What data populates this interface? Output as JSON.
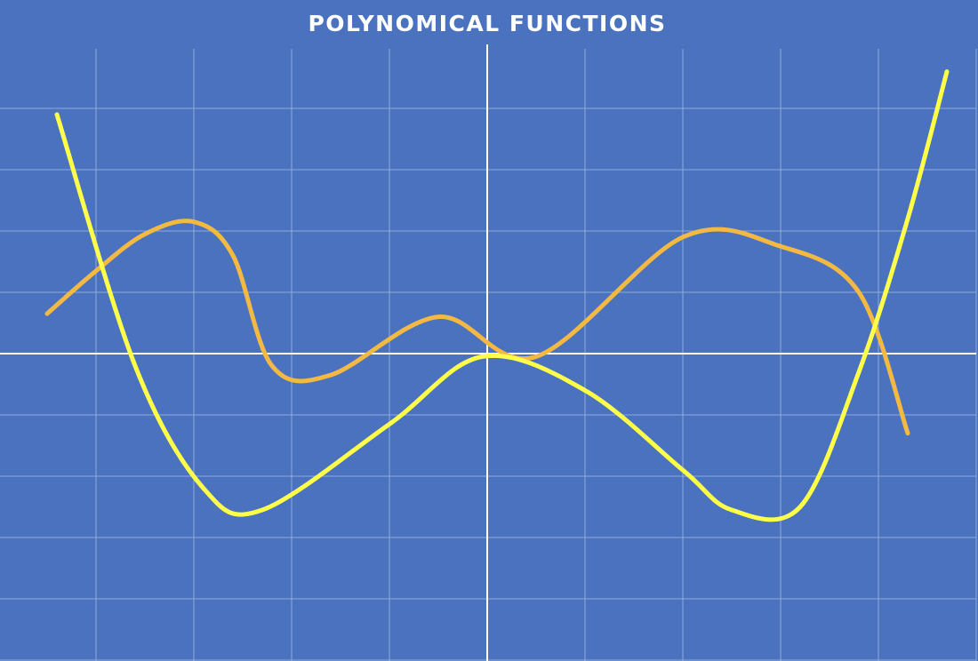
{
  "chart_data": {
    "type": "line",
    "title": "POLYNOMICAL FUNCTIONS",
    "xlabel": "",
    "ylabel": "",
    "xlim": [
      -5,
      5
    ],
    "ylim": [
      -5,
      5
    ],
    "grid": true,
    "x_grid_step": 1,
    "y_grid_step": 1,
    "series": [
      {
        "color": "#f4b942",
        "points": [
          [
            -4.5,
            0.65
          ],
          [
            -4.0,
            1.35
          ],
          [
            -3.5,
            1.95
          ],
          [
            -3.0,
            2.15
          ],
          [
            -2.6,
            1.6
          ],
          [
            -2.2,
            -0.2
          ],
          [
            -1.6,
            -0.35
          ],
          [
            -0.5,
            0.6
          ],
          [
            0.5,
            -0.05
          ],
          [
            2.0,
            1.9
          ],
          [
            3.0,
            1.75
          ],
          [
            3.8,
            1.0
          ],
          [
            4.3,
            -1.3
          ]
        ]
      },
      {
        "color": "#ffff4a",
        "points": [
          [
            -4.4,
            3.9
          ],
          [
            -3.6,
            -0.2
          ],
          [
            -2.9,
            -2.2
          ],
          [
            -2.3,
            -2.55
          ],
          [
            -1.0,
            -1.15
          ],
          [
            -0.05,
            -0.05
          ],
          [
            1.0,
            -0.6
          ],
          [
            2.0,
            -1.9
          ],
          [
            2.5,
            -2.55
          ],
          [
            3.2,
            -2.5
          ],
          [
            3.8,
            -0.3
          ],
          [
            4.3,
            2.2
          ],
          [
            4.7,
            4.6
          ]
        ]
      }
    ]
  }
}
